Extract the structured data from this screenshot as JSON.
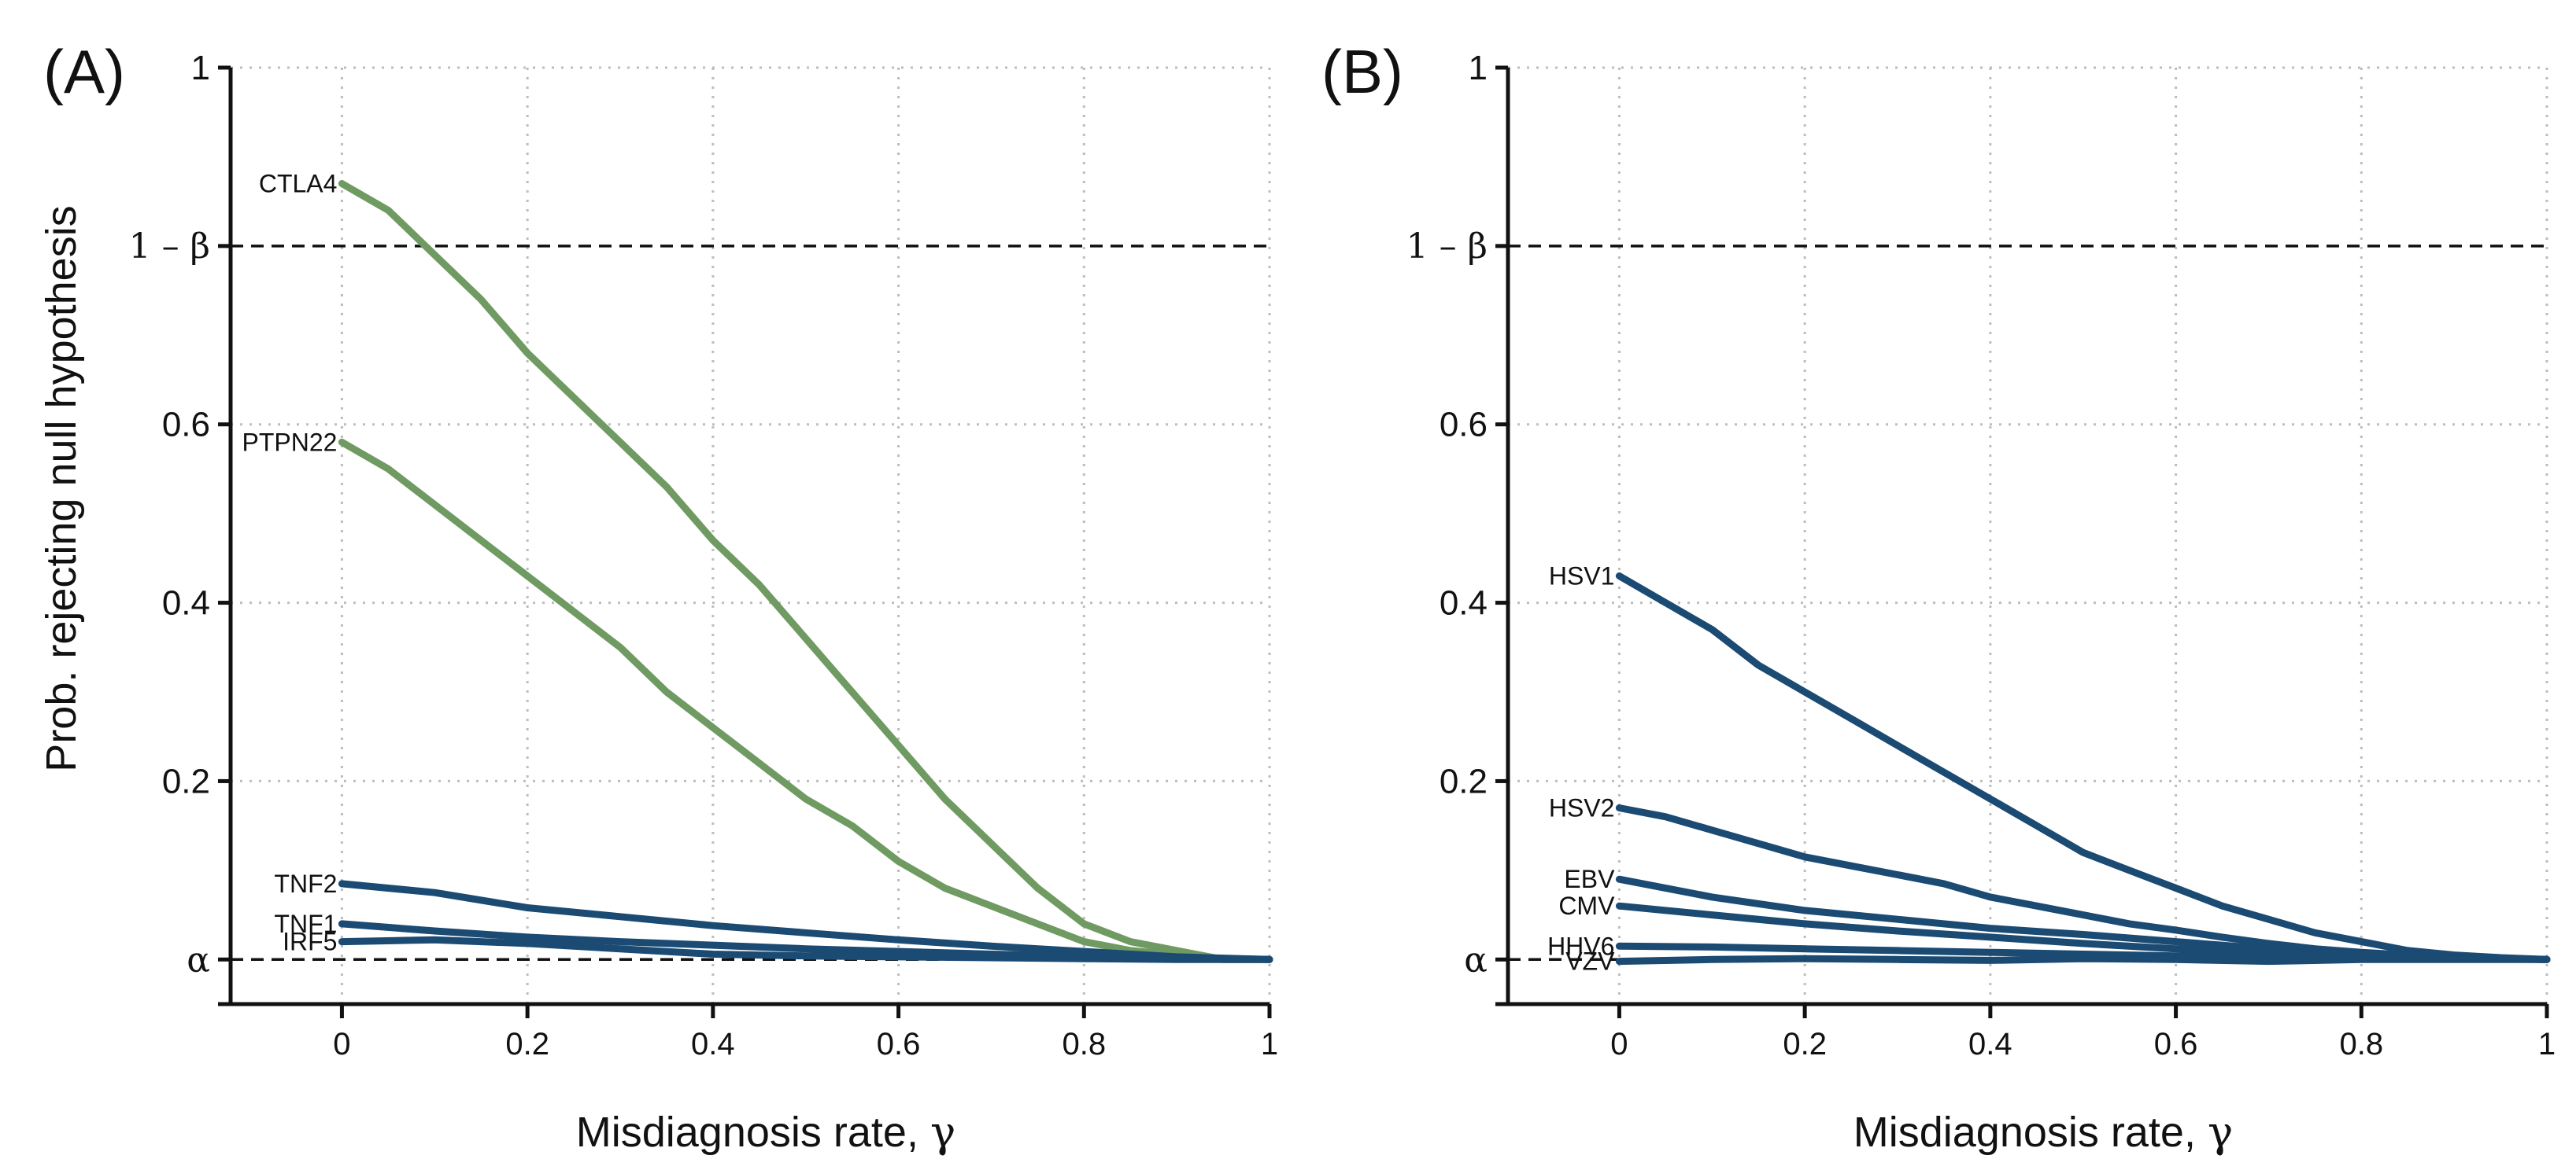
{
  "colors": {
    "green": "#6f9a62",
    "blue": "#1b4a73"
  },
  "chart_data": [
    {
      "type": "line",
      "panel_label": "(A)",
      "xlabel": "Misdiagnosis rate, ",
      "xlabel_symbol": "γ",
      "ylabel": "Prob. rejecting null hypothesis",
      "xlim": [
        -0.12,
        1
      ],
      "ylim": [
        -0.05,
        1
      ],
      "x_ticks": [
        0,
        0.2,
        0.4,
        0.6,
        0.8,
        1
      ],
      "x_tick_labels": [
        "0",
        "0.2",
        "0.4",
        "0.6",
        "0.8",
        "1"
      ],
      "y_ticks": [
        {
          "value": 1,
          "label": "1"
        },
        {
          "value": 0.8,
          "label": "1 – β",
          "serif": true
        },
        {
          "value": 0.6,
          "label": "0.6"
        },
        {
          "value": 0.4,
          "label": "0.4"
        },
        {
          "value": 0.2,
          "label": "0.2"
        },
        {
          "value": 0,
          "label": "α",
          "serif": true
        }
      ],
      "reference_lines": [
        {
          "name": "power",
          "y": 0.8
        },
        {
          "name": "alpha",
          "y": 0.0
        }
      ],
      "series": [
        {
          "name": "CTLA4",
          "color": "green",
          "label_offset": 0,
          "x": [
            0,
            0.05,
            0.1,
            0.15,
            0.2,
            0.25,
            0.3,
            0.35,
            0.4,
            0.45,
            0.5,
            0.55,
            0.6,
            0.65,
            0.7,
            0.75,
            0.8,
            0.85,
            0.9,
            0.95,
            1
          ],
          "y": [
            0.87,
            0.84,
            0.79,
            0.74,
            0.68,
            0.63,
            0.58,
            0.53,
            0.47,
            0.42,
            0.36,
            0.3,
            0.24,
            0.18,
            0.13,
            0.08,
            0.04,
            0.02,
            0.01,
            0.0,
            0.0
          ]
        },
        {
          "name": "PTPN22",
          "color": "green",
          "label_offset": 0,
          "x": [
            0,
            0.05,
            0.1,
            0.15,
            0.2,
            0.25,
            0.3,
            0.35,
            0.4,
            0.45,
            0.5,
            0.55,
            0.6,
            0.65,
            0.7,
            0.75,
            0.8,
            0.85,
            0.9,
            0.95,
            1
          ],
          "y": [
            0.58,
            0.55,
            0.51,
            0.47,
            0.43,
            0.39,
            0.35,
            0.3,
            0.26,
            0.22,
            0.18,
            0.15,
            0.11,
            0.08,
            0.06,
            0.04,
            0.02,
            0.01,
            0.005,
            0.0,
            0.0
          ]
        },
        {
          "name": "TNF2",
          "color": "blue",
          "label_offset": 0,
          "x": [
            0,
            0.1,
            0.2,
            0.3,
            0.4,
            0.5,
            0.6,
            0.7,
            0.8,
            0.9,
            1
          ],
          "y": [
            0.085,
            0.075,
            0.058,
            0.048,
            0.038,
            0.03,
            0.022,
            0.015,
            0.009,
            0.003,
            0.0
          ]
        },
        {
          "name": "TNF1",
          "color": "blue",
          "label_offset": 0,
          "x": [
            0,
            0.1,
            0.2,
            0.3,
            0.4,
            0.5,
            0.6,
            0.7,
            0.8,
            0.9,
            1
          ],
          "y": [
            0.04,
            0.032,
            0.025,
            0.02,
            0.016,
            0.012,
            0.009,
            0.006,
            0.004,
            0.002,
            0.0
          ]
        },
        {
          "name": "IRF5",
          "color": "blue",
          "label_offset": 0,
          "x": [
            0,
            0.1,
            0.2,
            0.3,
            0.4,
            0.5,
            0.6,
            0.7,
            0.8,
            0.9,
            1
          ],
          "y": [
            0.02,
            0.022,
            0.018,
            0.012,
            0.006,
            0.004,
            0.003,
            0.002,
            0.001,
            0.0,
            0.0
          ]
        }
      ]
    },
    {
      "type": "line",
      "panel_label": "(B)",
      "xlabel": "Misdiagnosis rate, ",
      "xlabel_symbol": "γ",
      "ylabel": "",
      "xlim": [
        -0.12,
        1
      ],
      "ylim": [
        -0.05,
        1
      ],
      "x_ticks": [
        0,
        0.2,
        0.4,
        0.6,
        0.8,
        1
      ],
      "x_tick_labels": [
        "0",
        "0.2",
        "0.4",
        "0.6",
        "0.8",
        "1"
      ],
      "y_ticks": [
        {
          "value": 1,
          "label": "1"
        },
        {
          "value": 0.8,
          "label": "1 – β",
          "serif": true
        },
        {
          "value": 0.6,
          "label": "0.6"
        },
        {
          "value": 0.4,
          "label": "0.4"
        },
        {
          "value": 0.2,
          "label": "0.2"
        },
        {
          "value": 0,
          "label": "α",
          "serif": true
        }
      ],
      "reference_lines": [
        {
          "name": "power",
          "y": 0.8
        },
        {
          "name": "alpha",
          "y": 0.0
        }
      ],
      "series": [
        {
          "name": "HSV1",
          "color": "blue",
          "label_offset": 0,
          "x": [
            0,
            0.05,
            0.1,
            0.15,
            0.2,
            0.25,
            0.3,
            0.35,
            0.4,
            0.45,
            0.5,
            0.55,
            0.6,
            0.65,
            0.7,
            0.75,
            0.8,
            0.85,
            0.9,
            0.95,
            1
          ],
          "y": [
            0.43,
            0.4,
            0.37,
            0.33,
            0.3,
            0.27,
            0.24,
            0.21,
            0.18,
            0.15,
            0.12,
            0.1,
            0.08,
            0.06,
            0.045,
            0.03,
            0.02,
            0.01,
            0.005,
            0.002,
            0.0
          ]
        },
        {
          "name": "HSV2",
          "color": "blue",
          "label_offset": 0,
          "x": [
            0,
            0.05,
            0.1,
            0.15,
            0.2,
            0.25,
            0.3,
            0.35,
            0.4,
            0.45,
            0.5,
            0.55,
            0.6,
            0.65,
            0.7,
            0.75,
            0.8,
            0.85,
            0.9,
            0.95,
            1
          ],
          "y": [
            0.17,
            0.16,
            0.145,
            0.13,
            0.115,
            0.105,
            0.095,
            0.085,
            0.07,
            0.06,
            0.05,
            0.04,
            0.033,
            0.025,
            0.018,
            0.012,
            0.008,
            0.005,
            0.002,
            0.001,
            0.0
          ]
        },
        {
          "name": "EBV",
          "color": "blue",
          "label_offset": 0,
          "x": [
            0,
            0.1,
            0.2,
            0.3,
            0.4,
            0.5,
            0.6,
            0.7,
            0.8,
            0.9,
            1
          ],
          "y": [
            0.09,
            0.07,
            0.055,
            0.045,
            0.035,
            0.028,
            0.02,
            0.012,
            0.006,
            0.002,
            0.0
          ]
        },
        {
          "name": "CMV",
          "color": "blue",
          "label_offset": 0,
          "x": [
            0,
            0.1,
            0.2,
            0.3,
            0.4,
            0.5,
            0.6,
            0.7,
            0.8,
            0.9,
            1
          ],
          "y": [
            0.06,
            0.05,
            0.04,
            0.032,
            0.025,
            0.018,
            0.012,
            0.008,
            0.005,
            0.002,
            0.0
          ]
        },
        {
          "name": "HHV6",
          "color": "blue",
          "label_offset": 0,
          "x": [
            0,
            0.1,
            0.2,
            0.3,
            0.4,
            0.5,
            0.6,
            0.7,
            0.8,
            0.9,
            1
          ],
          "y": [
            0.015,
            0.014,
            0.012,
            0.01,
            0.008,
            0.006,
            0.004,
            0.003,
            0.002,
            0.001,
            0.0
          ]
        },
        {
          "name": "VZV",
          "color": "blue",
          "label_offset": 0,
          "x": [
            0,
            0.1,
            0.2,
            0.3,
            0.4,
            0.5,
            0.6,
            0.7,
            0.8,
            0.9,
            1
          ],
          "y": [
            -0.002,
            0.0,
            0.001,
            0.0,
            -0.001,
            0.001,
            0.0,
            -0.002,
            0.0,
            0.0,
            0.0
          ]
        }
      ]
    }
  ]
}
